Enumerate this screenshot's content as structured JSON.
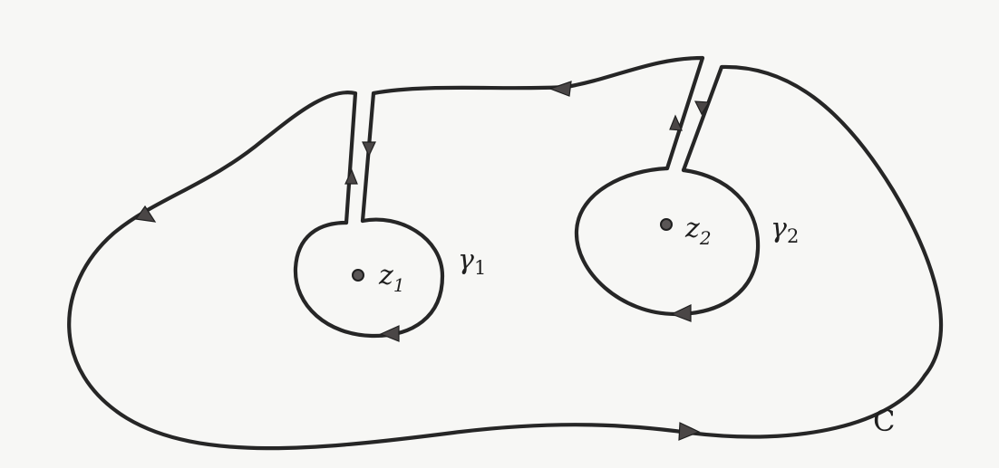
{
  "diagram": {
    "points": [
      {
        "main": "z",
        "sub": "1"
      },
      {
        "main": "z",
        "sub": "2"
      }
    ],
    "small_contours": [
      {
        "main": "γ",
        "sub": "1"
      },
      {
        "main": "γ",
        "sub": "2"
      }
    ],
    "outer_contour_label": "C"
  },
  "colors": {
    "ink": "#262626",
    "arrow": "#4a4646",
    "paper": "#f7f7f5"
  }
}
